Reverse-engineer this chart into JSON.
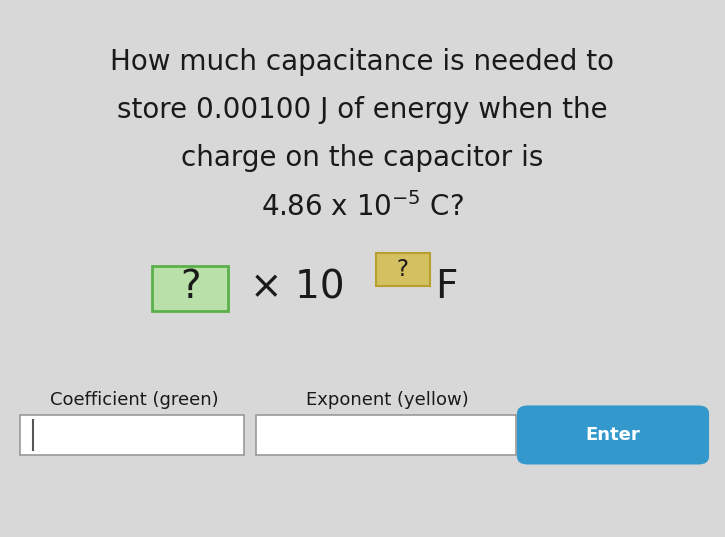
{
  "line1": "How much capacitance is needed to",
  "line2": "store 0.00100 J of energy when the",
  "line3": "charge on the capacitor is",
  "line4_base": "4.86 x 10",
  "line4_exp": "-5",
  "line4_end": " C?",
  "label_coeff": "Coefficient (green)",
  "label_exp": "Exponent (yellow)",
  "btn_label": "Enter",
  "bg_color": "#d8d8d8",
  "text_color": "#1a1a1a",
  "green_box_edge": "#5ab04a",
  "green_box_face": "#b8e0a8",
  "yellow_box_edge": "#b8a030",
  "yellow_box_face": "#d4c060",
  "blue_btn_color": "#3399cc",
  "title_fontsize": 20,
  "answer_fontsize": 28,
  "small_fontsize": 13
}
